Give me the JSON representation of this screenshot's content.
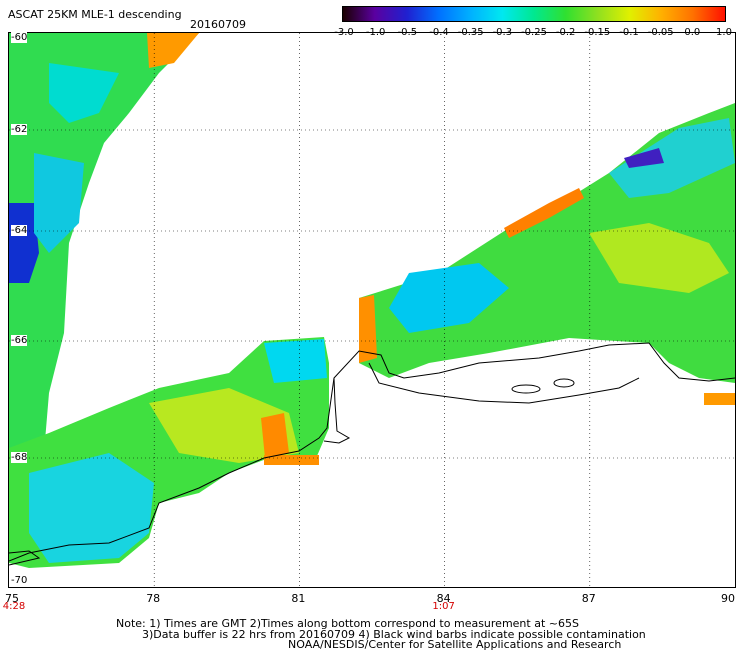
{
  "header": {
    "title": "ASCAT 25KM MLE-1 descending",
    "date": "20160709"
  },
  "colorbar": {
    "ticks": [
      "-3.0",
      "-1.0",
      "-0.5",
      "-0.4",
      "-0.35",
      "-0.3",
      "-0.25",
      "-0.2",
      "-0.15",
      "-0.1",
      "-0.05",
      "0.0",
      "1.0"
    ],
    "colors": [
      "#1a0000",
      "#5a00a0",
      "#2020d0",
      "#0070ff",
      "#00b0ff",
      "#00e8f0",
      "#00e890",
      "#30e030",
      "#90e020",
      "#e0f000",
      "#ffb000",
      "#ff7000",
      "#ff1000"
    ]
  },
  "map": {
    "lat_labels": [
      "-60",
      "-62",
      "-64",
      "-66",
      "-68",
      "-70"
    ],
    "lon_labels": [
      "75",
      "78",
      "81",
      "84",
      "87",
      "90"
    ],
    "time_labels": [
      {
        "text": "4:28",
        "lon": "75"
      },
      {
        "text": "1:07",
        "lon": "84"
      }
    ]
  },
  "notes": {
    "line1": "Note: 1) Times are GMT 2)Times along bottom correspond to measurement at ~65S",
    "line2": "3)Data buffer is 22 hrs from 20160709 4) Black wind barbs indicate possible contamination",
    "line3": "NOAA/NESDIS/Center for Satellite Applications and Research"
  }
}
